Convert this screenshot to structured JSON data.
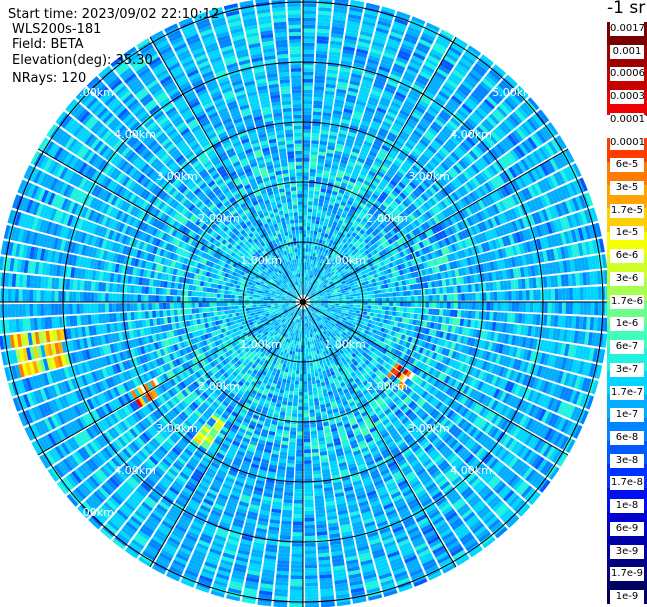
{
  "header": {
    "start_time": "Start time: 2023/09/02 22:10:12",
    "instrument": "WLS200s-181",
    "field": "Field: BETA",
    "elevation": "Elevation(deg): 35.30",
    "nrays": "NRays: 120"
  },
  "colorbar": {
    "title": "-1 sr",
    "labels": [
      "0.0017",
      "0.001",
      "0.0006",
      "0.0003",
      "0.00017",
      "0.0001",
      "6e-5",
      "3e-5",
      "1.7e-5",
      "1e-5",
      "6e-6",
      "3e-6",
      "1.7e-6",
      "1e-6",
      "6e-7",
      "3e-7",
      "1.7e-7",
      "1e-7",
      "6e-8",
      "3e-8",
      "1.7e-8",
      "1e-8",
      "6e-9",
      "3e-9",
      "1.7e-9",
      "1e-9"
    ],
    "colors": [
      "#7a0000",
      "#a00000",
      "#c80000",
      "#ef0000",
      "#ffffff",
      "#ff3c00",
      "#ff7a00",
      "#ffa300",
      "#ffcf00",
      "#f4ff00",
      "#cfff26",
      "#a6ff51",
      "#6bff8c",
      "#40ffb8",
      "#1ff2df",
      "#00d5ff",
      "#00adff",
      "#0084ff",
      "#005aff",
      "#0033ff",
      "#0010f0",
      "#0000d0",
      "#0000a8",
      "#000080",
      "#000060"
    ]
  },
  "chart_data": {
    "type": "ppi",
    "field": "BETA",
    "rings_km": [
      1,
      2,
      3,
      4,
      5
    ],
    "spoke_angles_deg": [
      0,
      30,
      60,
      90,
      120,
      150,
      180,
      210,
      240,
      270,
      300,
      330
    ],
    "ring_labels": [
      {
        "text": "1.00km",
        "range_km": 1,
        "azimuth_deg": 45
      },
      {
        "text": "1.00km",
        "range_km": 1,
        "azimuth_deg": 135
      },
      {
        "text": "1.00km",
        "range_km": 1,
        "azimuth_deg": 225
      },
      {
        "text": "1.00km",
        "range_km": 1,
        "azimuth_deg": 315
      },
      {
        "text": "2.00km",
        "range_km": 2,
        "azimuth_deg": 45
      },
      {
        "text": "2.00km",
        "range_km": 2,
        "azimuth_deg": 135
      },
      {
        "text": "2.00km",
        "range_km": 2,
        "azimuth_deg": 225
      },
      {
        "text": "2.00km",
        "range_km": 2,
        "azimuth_deg": 315
      },
      {
        "text": "3.00km",
        "range_km": 3,
        "azimuth_deg": 45
      },
      {
        "text": "3.00km",
        "range_km": 3,
        "azimuth_deg": 135
      },
      {
        "text": "3.00km",
        "range_km": 3,
        "azimuth_deg": 225
      },
      {
        "text": "3.00km",
        "range_km": 3,
        "azimuth_deg": 315
      },
      {
        "text": "4.00km",
        "range_km": 4,
        "azimuth_deg": 45
      },
      {
        "text": "4.00km",
        "range_km": 4,
        "azimuth_deg": 135
      },
      {
        "text": "4.00km",
        "range_km": 4,
        "azimuth_deg": 225
      },
      {
        "text": "4.00km",
        "range_km": 4,
        "azimuth_deg": 315
      },
      {
        "text": "5.00km",
        "range_km": 5,
        "azimuth_deg": 45
      },
      {
        "text": "5.00km",
        "range_km": 5,
        "azimuth_deg": 225
      },
      {
        "text": "5.00km",
        "range_km": 5,
        "azimuth_deg": 315
      }
    ],
    "max_range_km": 5.1,
    "nrays": 120,
    "background_level_range": [
      13,
      18
    ],
    "hotspots": [
      {
        "azimuth_deg": [
          255,
          263
        ],
        "range_km": [
          4.0,
          4.9
        ],
        "levels": [
          6,
          12
        ]
      },
      {
        "azimuth_deg": [
          238,
          244
        ],
        "range_km": [
          2.7,
          3.2
        ],
        "levels": [
          3,
          8
        ]
      },
      {
        "azimuth_deg": [
          213,
          220
        ],
        "range_km": [
          2.4,
          2.9
        ],
        "levels": [
          8,
          12
        ]
      },
      {
        "azimuth_deg": [
          123,
          132
        ],
        "range_km": [
          1.8,
          2.2
        ],
        "levels": [
          2,
          8
        ]
      }
    ]
  }
}
